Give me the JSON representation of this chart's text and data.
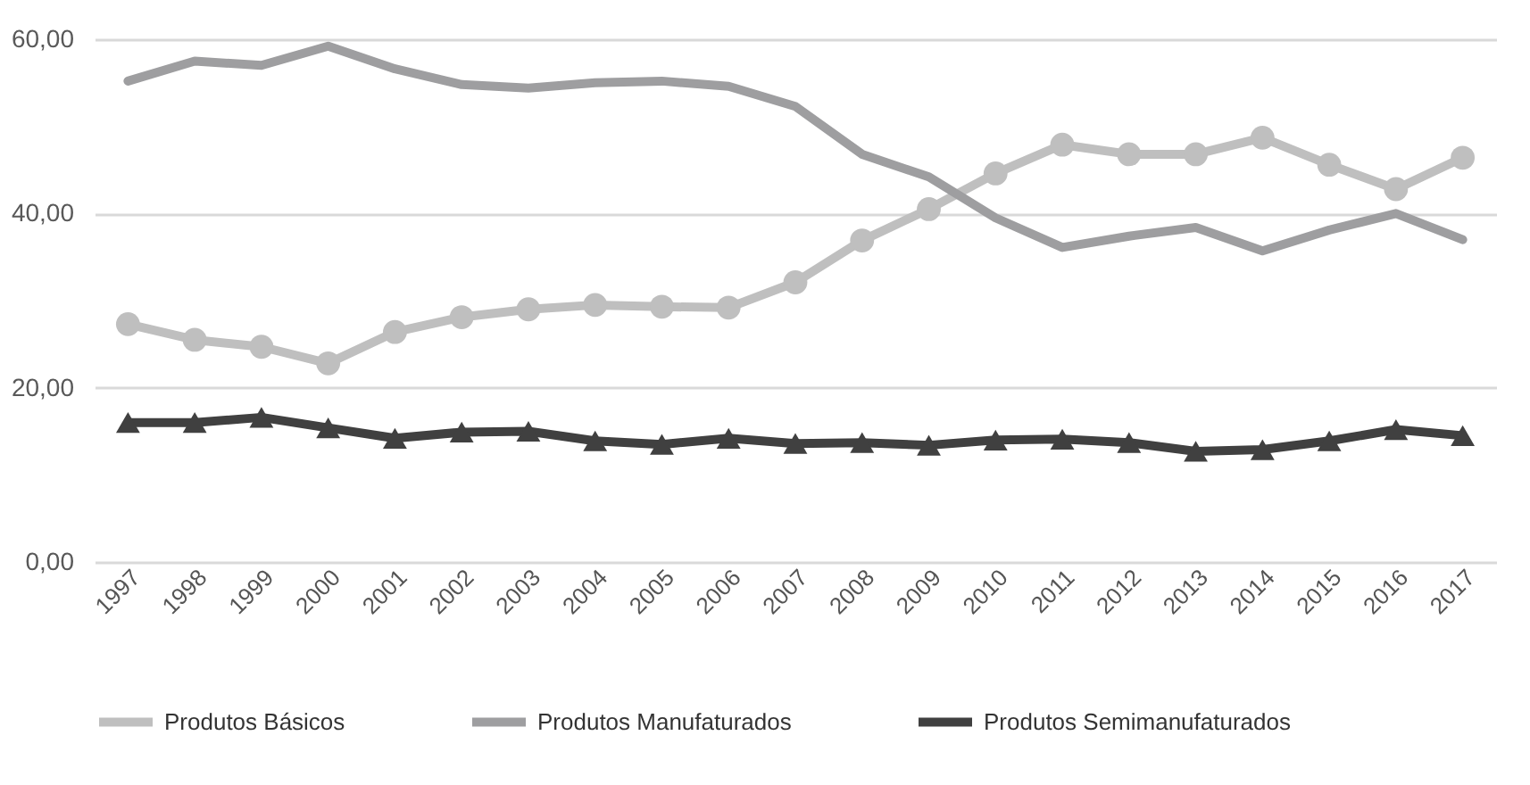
{
  "chart_data": {
    "type": "line",
    "categories": [
      "1997",
      "1998",
      "1999",
      "2000",
      "2001",
      "2002",
      "2003",
      "2004",
      "2005",
      "2006",
      "2007",
      "2008",
      "2009",
      "2010",
      "2011",
      "2012",
      "2013",
      "2014",
      "2015",
      "2016",
      "2017"
    ],
    "series": [
      {
        "name": "Produtos Básicos",
        "color": "#bfbfbf",
        "marker": "circle",
        "values": [
          27.3,
          25.5,
          24.7,
          22.8,
          26.4,
          28.1,
          29.0,
          29.5,
          29.3,
          29.2,
          32.1,
          36.9,
          40.5,
          44.6,
          47.9,
          46.8,
          46.8,
          48.7,
          45.6,
          42.8,
          46.4
        ]
      },
      {
        "name": "Produtos Manufaturados",
        "color": "#9e9ea0",
        "marker": "none",
        "values": [
          55.2,
          57.5,
          57.0,
          59.2,
          56.6,
          54.8,
          54.4,
          55.0,
          55.2,
          54.6,
          52.3,
          46.8,
          44.2,
          39.5,
          36.1,
          37.4,
          38.4,
          35.7,
          38.1,
          40.0,
          37.0
        ]
      },
      {
        "name": "Produtos Semimanufaturados",
        "color": "#404040",
        "marker": "triangle",
        "values": [
          16.0,
          16.0,
          16.6,
          15.4,
          14.2,
          14.9,
          15.0,
          13.9,
          13.5,
          14.2,
          13.6,
          13.7,
          13.4,
          14.0,
          14.1,
          13.7,
          12.7,
          12.9,
          13.9,
          15.2,
          14.5
        ]
      }
    ],
    "ylim": [
      0,
      60
    ],
    "yticks": [
      {
        "value": 0,
        "label": "0,00"
      },
      {
        "value": 20,
        "label": "20,00"
      },
      {
        "value": 40,
        "label": "40,00"
      },
      {
        "value": 60,
        "label": "60,00"
      }
    ],
    "grid": "y",
    "legend": "bottom"
  }
}
